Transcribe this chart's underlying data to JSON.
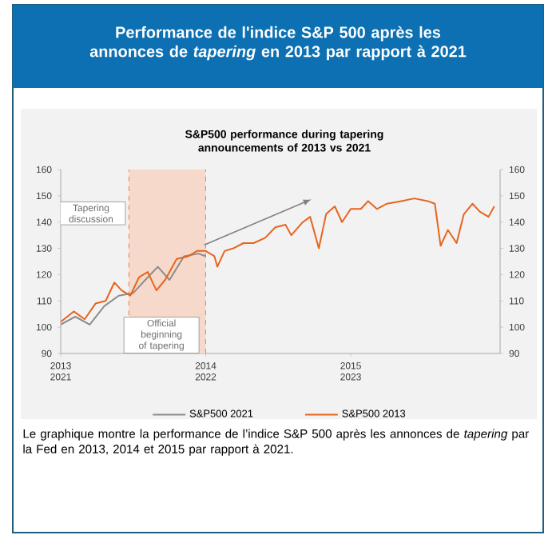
{
  "chart_data": {
    "type": "line",
    "title": "Performance de l'indice S&P 500 après les annonces de *tapering* en 2013 par rapport à 2021",
    "subtitle": "S&P500 performance during tapering announcements of 2013 vs 2021",
    "series": [
      {
        "name": "S&P500 2021",
        "color": "#8c8c8c",
        "x": [
          2013.0,
          2013.1,
          2013.2,
          2013.3,
          2013.4,
          2013.5,
          2013.6,
          2013.67,
          2013.75,
          2013.85,
          2013.95,
          2014.0
        ],
        "values": [
          101,
          104,
          101,
          108,
          112,
          113,
          119,
          123,
          118,
          127,
          128,
          127
        ]
      },
      {
        "name": "S&P500 2013",
        "color": "#e8641e",
        "x": [
          2013.0,
          2013.09,
          2013.165,
          2013.24,
          2013.31,
          2013.37,
          2013.42,
          2013.48,
          2013.54,
          2013.6,
          2013.66,
          2013.72,
          2013.8,
          2013.88,
          2013.94,
          2014.0,
          2014.06,
          2014.08,
          2014.13,
          2014.19,
          2014.26,
          2014.33,
          2014.41,
          2014.48,
          2014.55,
          2014.59,
          2014.67,
          2014.72,
          2014.78,
          2014.83,
          2014.89,
          2014.94,
          2015.0,
          2015.07,
          2015.12,
          2015.18,
          2015.25,
          2015.35,
          2015.44,
          2015.53,
          2015.58,
          2015.62,
          2015.67,
          2015.73,
          2015.78,
          2015.84,
          2015.89,
          2015.95,
          2015.99
        ],
        "values": [
          102,
          106,
          103,
          109,
          110,
          117,
          114,
          112,
          119,
          121,
          114,
          118,
          126,
          127,
          129,
          129,
          127,
          123,
          129,
          130,
          132,
          132,
          134,
          138,
          139,
          135,
          140,
          142,
          130,
          143,
          146,
          140,
          145,
          145,
          148,
          145,
          147,
          148,
          149,
          148,
          147,
          131,
          137,
          132,
          143,
          147,
          144,
          142,
          146
        ]
      }
    ],
    "xlim": [
      2013,
      2016.03
    ],
    "xticks": [
      2013,
      2014,
      2015
    ],
    "x2lim": [
      2021,
      2024.03
    ],
    "x2ticks": [
      2021,
      2022,
      2023
    ],
    "ylim": [
      90,
      160
    ],
    "yticks": [
      90,
      100,
      110,
      120,
      130,
      140,
      150,
      160
    ],
    "y2lim": [
      90,
      160
    ],
    "y2ticks": [
      90,
      100,
      110,
      120,
      130,
      140,
      150,
      160
    ],
    "bands": [
      {
        "axis": "x",
        "from": 2013.47,
        "to": 2014.0,
        "label": "Tapering discussion",
        "color": "#f6d9ca"
      }
    ],
    "ref_lines": [
      {
        "axis": "x",
        "value": 2013.47,
        "color": "#e8641e",
        "line_style": "dashed"
      },
      {
        "axis": "x",
        "value": 2014.0,
        "label": "Official beginning of tapering",
        "color": "#e8641e",
        "line_style": "dashed"
      }
    ],
    "annotations": [
      "Le graphique montre la performance de l’indice S&P 500 après les annonces de *tapering* par la Fed en 2013, 2014 et 2015 par rapport à 2021."
    ],
    "legend": "bottom",
    "line_style": "solid"
  }
}
